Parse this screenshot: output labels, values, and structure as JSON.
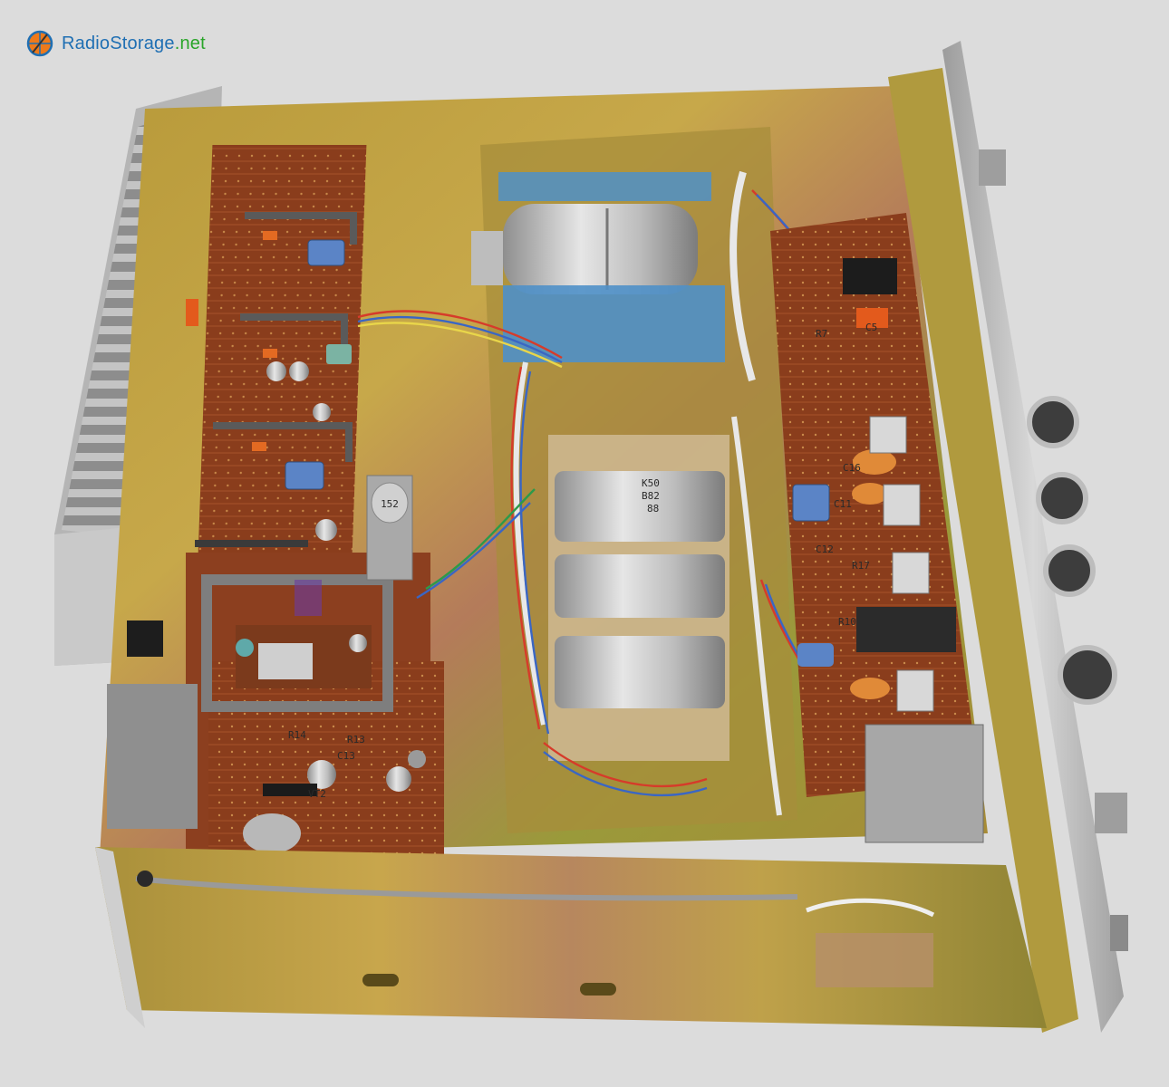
{
  "watermark": {
    "brand_primary": "RadioStorage",
    "brand_tld": ".net",
    "icon": "logo-globe-icon",
    "colors": {
      "primary": "#1f6fb3",
      "tld": "#2aa52a",
      "accent": "#ee7a1b"
    }
  },
  "capacitor_markings": {
    "line1": "K50",
    "line2": "B82",
    "line3": "88"
  },
  "component_labels": {
    "r13": "R13",
    "c13": "C13",
    "vt2": "VT2",
    "r14": "R14",
    "r7": "R7",
    "c16": "C16",
    "c11": "C11",
    "c12": "C12",
    "r17": "R17",
    "r10": "R10",
    "c5": "C5"
  },
  "filter_can_marking": "152"
}
